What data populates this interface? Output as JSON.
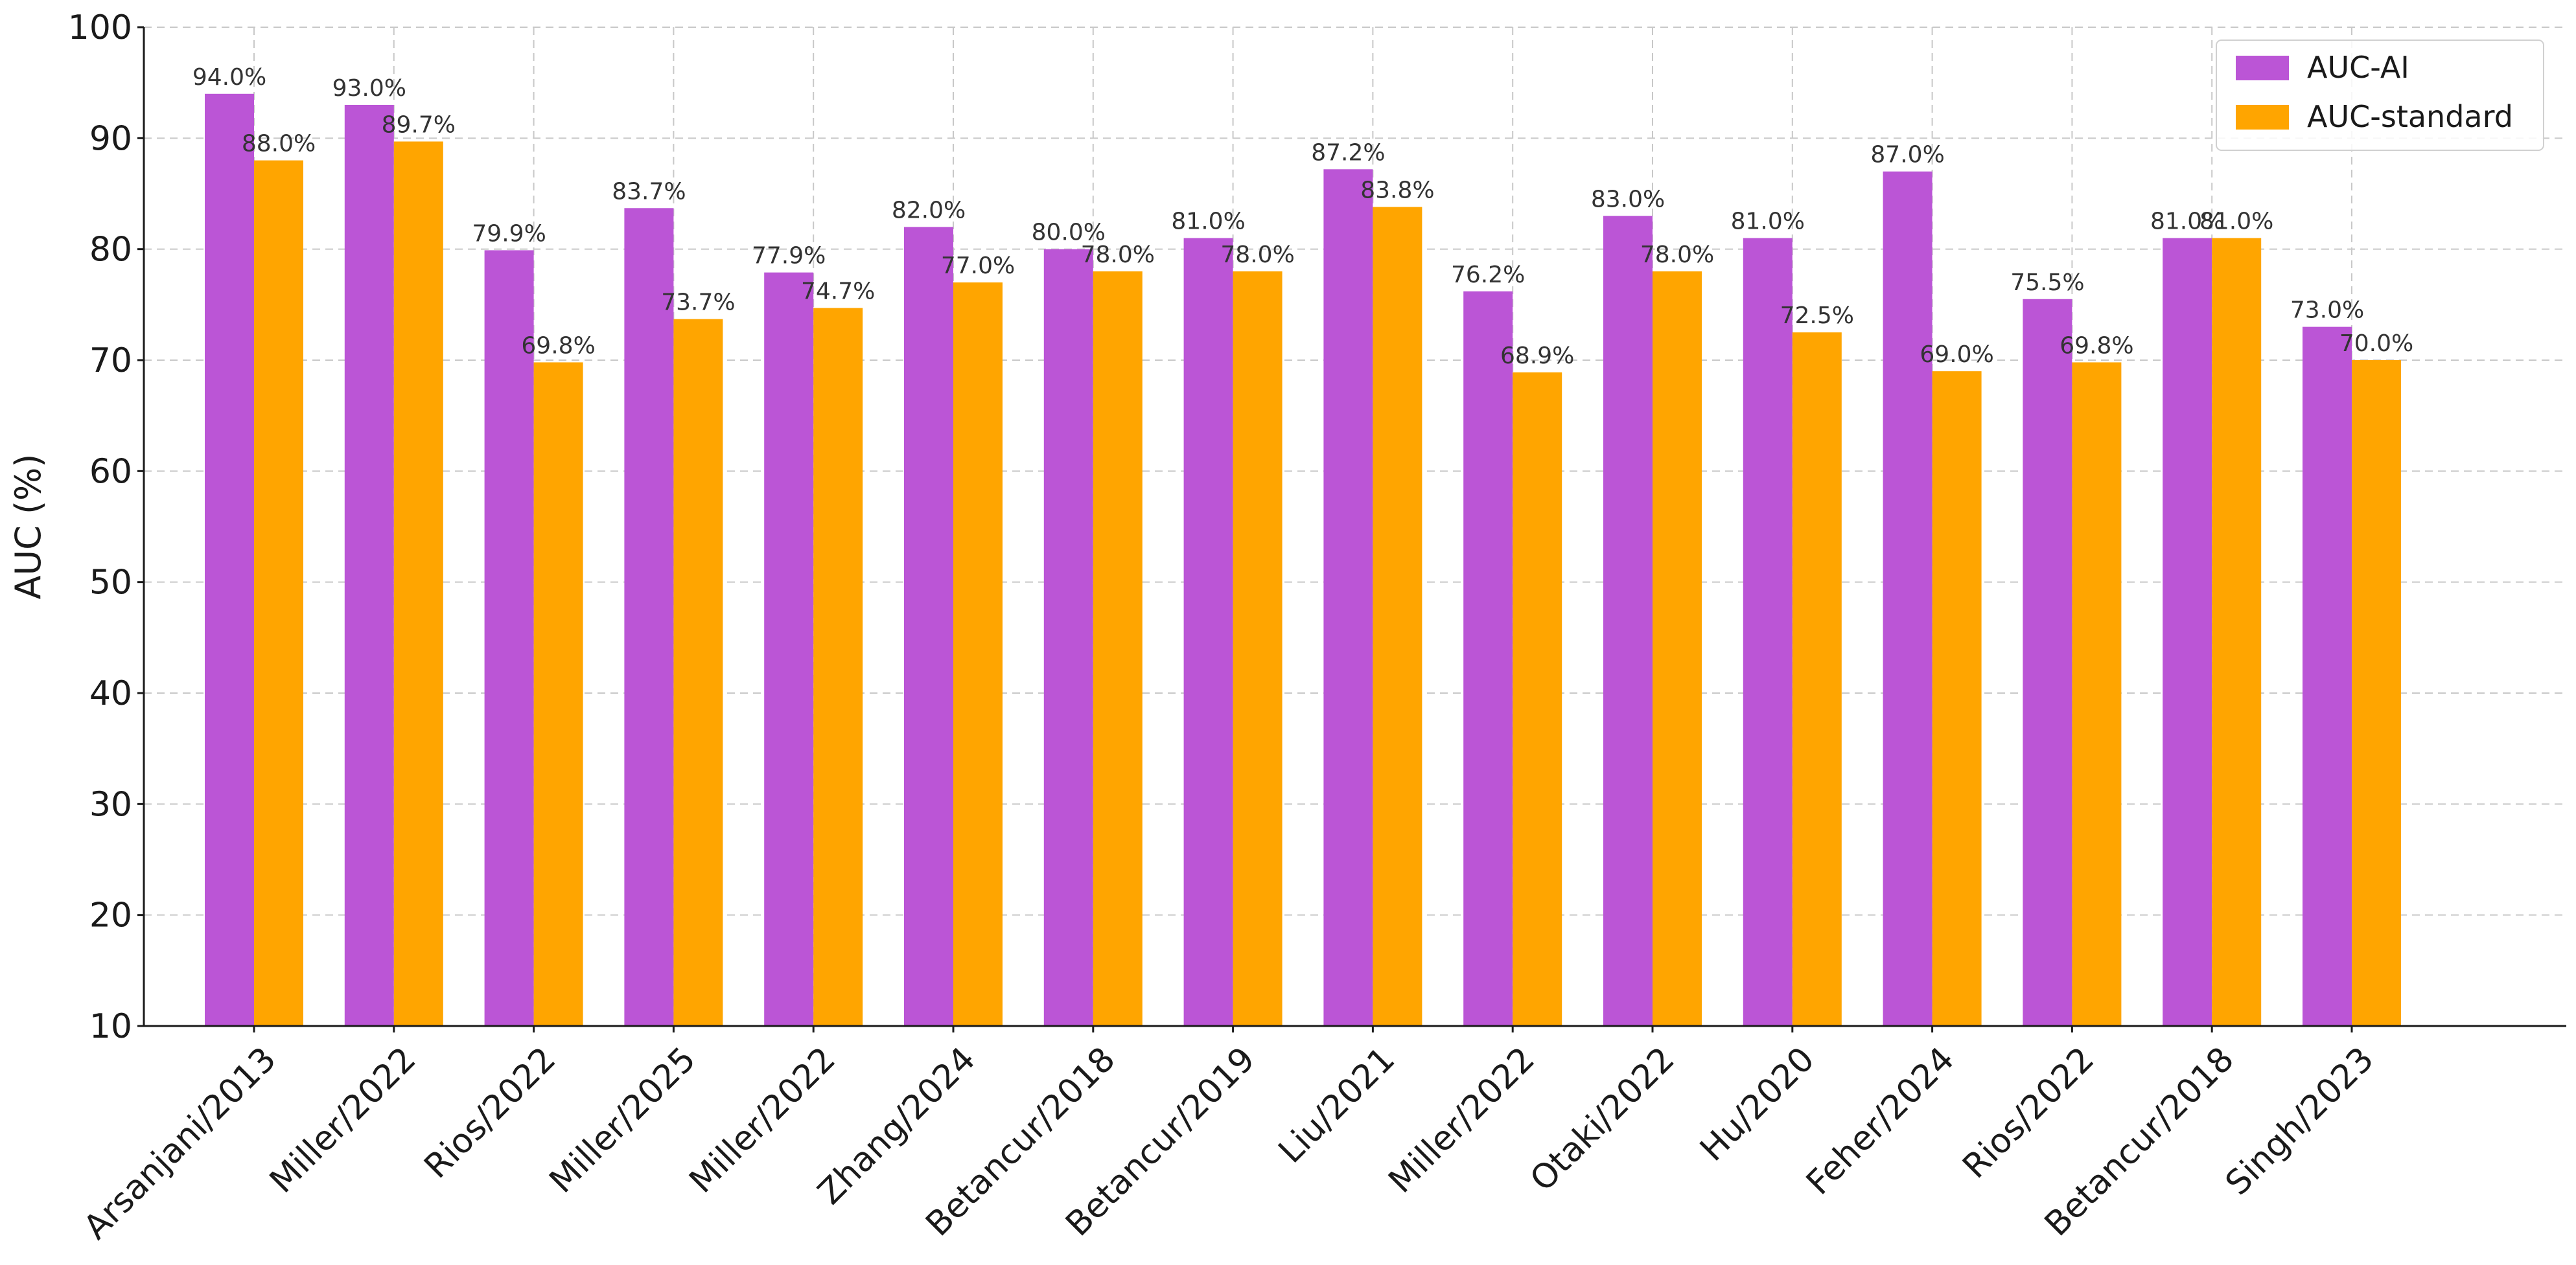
{
  "chart_data": {
    "type": "bar",
    "title": "",
    "xlabel": "",
    "ylabel": "AUC (%)",
    "ylim": [
      10,
      100
    ],
    "yticks": [
      10,
      20,
      30,
      40,
      50,
      60,
      70,
      80,
      90,
      100
    ],
    "grid": true,
    "legend_position": "top-right",
    "categories": [
      "Arsanjani/2013",
      "Miller/2022",
      "Rios/2022",
      "Miller/2025",
      "Miller/2022",
      "Zhang/2024",
      "Betancur/2018",
      "Betancur/2019",
      "Liu/2021",
      "Miller/2022",
      "Otaki/2022",
      "Hu/2020",
      "Feher/2024",
      "Rios/2022",
      "Betancur/2018",
      "Singh/2023"
    ],
    "series": [
      {
        "name": "AUC-AI",
        "color": "#bb55d6",
        "values": [
          94.0,
          93.0,
          79.9,
          83.7,
          77.9,
          82.0,
          80.0,
          81.0,
          87.2,
          76.2,
          83.0,
          81.0,
          87.0,
          75.5,
          81.0,
          73.0
        ],
        "labels": [
          "94.0%",
          "93.0%",
          "79.9%",
          "83.7%",
          "77.9%",
          "82.0%",
          "80.0%",
          "81.0%",
          "87.2%",
          "76.2%",
          "83.0%",
          "81.0%",
          "87.0%",
          "75.5%",
          "81.0%",
          "73.0%"
        ]
      },
      {
        "name": "AUC-standard",
        "color": "#ffa500",
        "values": [
          88.0,
          89.7,
          69.8,
          73.7,
          74.7,
          77.0,
          78.0,
          78.0,
          83.8,
          68.9,
          78.0,
          72.5,
          69.0,
          69.8,
          81.0,
          70.0
        ],
        "labels": [
          "88.0%",
          "89.7%",
          "69.8%",
          "73.7%",
          "74.7%",
          "77.0%",
          "78.0%",
          "78.0%",
          "83.8%",
          "68.9%",
          "78.0%",
          "72.5%",
          "69.0%",
          "69.8%",
          "81.0%",
          "70.0%"
        ]
      }
    ]
  }
}
